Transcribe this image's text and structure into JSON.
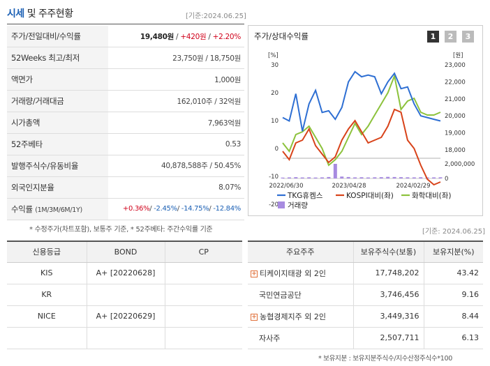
{
  "header": {
    "title_prefix": "시세",
    "title_rest": "및 주주현황",
    "date": "[기준:2024.06.25]"
  },
  "stats": [
    {
      "label": "주가/전일대비/수익률"
    },
    {
      "label": "52Weeks 최고/최저",
      "value": "23,750원 / 18,750원"
    },
    {
      "label": "액면가",
      "value": "1,000원"
    },
    {
      "label": "거래량/거래대금",
      "value": "162,010주 / 32억원"
    },
    {
      "label": "시가총액",
      "value": "7,963억원"
    },
    {
      "label": "52주베타",
      "value": "0.53"
    },
    {
      "label": "발행주식수/유동비율",
      "value": "40,878,588주 / 50.45%"
    },
    {
      "label": "외국인지분율",
      "value": "8.07%"
    },
    {
      "label": "수익률",
      "sub": "(1M/3M/6M/1Y)"
    }
  ],
  "price_row": {
    "price": "19,480원",
    "sep1": " / ",
    "change": "+420원",
    "sep2": " / ",
    "rate": "+2.20%"
  },
  "returns_row": {
    "r1": "+0.36%",
    "r2": "-2.45%",
    "r3": "-14.75%",
    "r4": "-12.84%",
    "sep": "/ "
  },
  "stats_note": "* 수정주가(차트포함), 보통주 기준, * 52주베타: 주간수익률 기준",
  "chart": {
    "title": "주가/상대수익률",
    "period_buttons": [
      "1",
      "2",
      "3"
    ],
    "left_unit": "[%]",
    "right_unit": "[원]",
    "left_ticks": [
      "30",
      "20",
      "10",
      "0",
      "-10",
      "-20"
    ],
    "right_ticks": [
      "23,000",
      "22,000",
      "21,000",
      "20,000",
      "19,000",
      "18,000"
    ],
    "volume_ticks": [
      "2,000,000",
      "0"
    ],
    "x_ticks": [
      "2022/06/30",
      "2023/04/28",
      "2024/02/29"
    ],
    "legend": [
      "TKG휴켐스",
      "KOSPI대비(좌)",
      "화학대비(좌)",
      "거래량"
    ],
    "colors": {
      "stock": "#2e6fd3",
      "kospi": "#d8431a",
      "chem": "#8cc23c",
      "volume": "#a78be0"
    }
  },
  "chart_data": {
    "type": "line",
    "title": "주가/상대수익률",
    "x_ticks": [
      "2022/06/30",
      "2023/04/28",
      "2024/02/29"
    ],
    "left_axis": {
      "label": "[%]",
      "ylim": [
        -25,
        30
      ]
    },
    "right_axis": {
      "label": "[원]",
      "ylim": [
        17500,
        23000
      ]
    },
    "series": [
      {
        "name": "TKG휴켐스",
        "axis": "right",
        "values": [
          19900,
          19700,
          21300,
          19100,
          20700,
          21500,
          20200,
          20300,
          19800,
          20500,
          22000,
          22600,
          22300,
          22400,
          22300,
          21300,
          22000,
          22500,
          21600,
          21700,
          20700,
          20000,
          19900,
          19800,
          19700
        ]
      },
      {
        "name": "KOSPI대비(좌)",
        "axis": "left",
        "values": [
          -1,
          -4,
          2,
          3,
          7,
          1,
          -2,
          -5,
          -3,
          3,
          7,
          10,
          6,
          2,
          3,
          4,
          8,
          14,
          13,
          3,
          0,
          -6,
          -11,
          -13,
          -12
        ]
      },
      {
        "name": "화학대비(좌)",
        "axis": "left",
        "values": [
          2,
          -1,
          5,
          6,
          8,
          4,
          0,
          -6,
          -4,
          -1,
          4,
          9,
          5,
          8,
          12,
          16,
          20,
          26,
          14,
          17,
          18,
          13,
          12,
          12,
          13
        ]
      },
      {
        "name": "거래량",
        "axis": "volume",
        "values": [
          120000,
          150000,
          180000,
          140000,
          160000,
          130000,
          150000,
          200000,
          2000000,
          260000,
          200000,
          150000,
          170000,
          140000,
          160000,
          180000,
          220000,
          200000,
          180000,
          160000,
          150000,
          170000,
          140000,
          150000,
          160000
        ]
      }
    ]
  },
  "credit": {
    "date": "[기준: 2024.06.25]",
    "headers": [
      "신용등급",
      "BOND",
      "CP"
    ],
    "rows": [
      {
        "agency": "KIS",
        "bond": "A+ [20220628]",
        "cp": ""
      },
      {
        "agency": "KR",
        "bond": "",
        "cp": ""
      },
      {
        "agency": "NICE",
        "bond": "A+ [20220629]",
        "cp": ""
      },
      {
        "agency": "",
        "bond": "",
        "cp": ""
      }
    ]
  },
  "shareholders": {
    "headers": [
      "주요주주",
      "보유주식수(보통)",
      "보유지분(%)"
    ],
    "rows": [
      {
        "name": "티케이지태광 외 2인",
        "shares": "17,748,202",
        "pct": "43.42",
        "expand": true
      },
      {
        "name": "국민연금공단",
        "shares": "3,746,456",
        "pct": "9.16",
        "expand": false
      },
      {
        "name": "농협경제지주 외 2인",
        "shares": "3,449,316",
        "pct": "8.44",
        "expand": true
      },
      {
        "name": "자사주",
        "shares": "2,507,711",
        "pct": "6.13",
        "expand": false
      }
    ],
    "note": "* 보유지분 : 보유지분주식수/지수산정주식수*100",
    "expand_icon": "plus-icon"
  }
}
